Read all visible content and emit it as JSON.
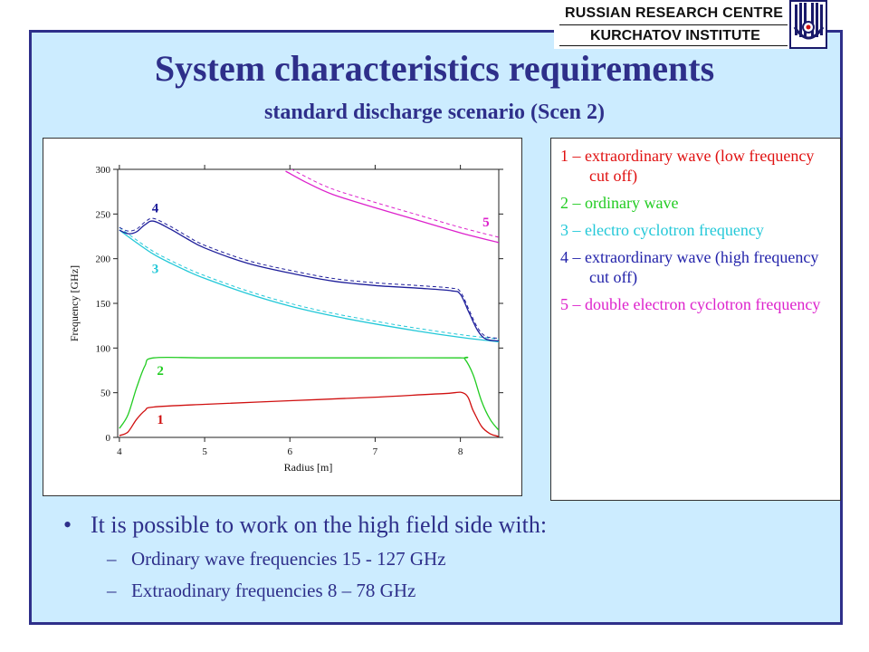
{
  "header": {
    "logo_line1": "RUSSIAN RESEARCH CENTRE",
    "logo_line2": "KURCHATOV INSTITUTE",
    "title": "System characteristics requirements",
    "subtitle": "standard discharge scenario (Scen 2)"
  },
  "colors": {
    "title": "#2e2f8a",
    "background": "#ccecff",
    "series1": "#d01010",
    "series2": "#22cc22",
    "series3": "#22c8d8",
    "series4": "#1e1e9a",
    "series5": "#dd22cc"
  },
  "legend": [
    {
      "text": "1 – extraordinary wave (low frequency cut off)",
      "color": "#e01010"
    },
    {
      "text": "2 – ordinary wave",
      "color": "#22cc22"
    },
    {
      "text": "3 – electro cyclotron frequency",
      "color": "#22c8d8"
    },
    {
      "text": "4 – extraordinary wave (high frequency cut off)",
      "color": "#2222aa"
    },
    {
      "text": "5 – double electron cyclotron frequency",
      "color": "#dd22cc"
    }
  ],
  "bullets": {
    "main": "It is possible to work on the high field side with:",
    "sub1": "Ordinary wave  frequencies  15 - 127 GHz",
    "sub2": "Extraodinary   frequencies 8 – 78 GHz"
  },
  "chart_data": {
    "type": "line",
    "xlabel": "Radius [m]",
    "ylabel": "Frequency [GHz]",
    "xlim": [
      3.98,
      8.45
    ],
    "ylim": [
      0,
      300
    ],
    "xticks": [
      4,
      5,
      6,
      7,
      8
    ],
    "yticks": [
      0,
      50,
      100,
      150,
      200,
      250,
      300
    ],
    "series": [
      {
        "name": "1",
        "color": "#d01010",
        "x": [
          4.0,
          4.1,
          4.2,
          4.3,
          4.4,
          5.0,
          6.0,
          7.0,
          7.8,
          8.05,
          8.15,
          8.25,
          8.35,
          8.45
        ],
        "y": [
          2,
          6,
          20,
          30,
          34,
          37,
          41,
          45,
          49,
          49,
          30,
          12,
          4,
          1
        ]
      },
      {
        "name": "2",
        "color": "#22cc22",
        "x": [
          4.0,
          4.1,
          4.2,
          4.3,
          4.4,
          5.0,
          6.0,
          7.0,
          8.0,
          8.05,
          8.15,
          8.25,
          8.35,
          8.45
        ],
        "y": [
          10,
          25,
          55,
          80,
          89,
          89,
          89,
          89,
          89,
          88,
          70,
          40,
          20,
          8
        ]
      },
      {
        "name": "3",
        "color": "#22c8d8",
        "x": [
          4.0,
          4.2,
          4.4,
          4.6,
          4.8,
          5.0,
          5.5,
          6.0,
          6.5,
          7.0,
          7.5,
          8.0,
          8.45
        ],
        "y": [
          232,
          218,
          205,
          195,
          186,
          178,
          161,
          147,
          136,
          127,
          119,
          112,
          107
        ]
      },
      {
        "name": "4",
        "color": "#1e1e9a",
        "x": [
          4.0,
          4.1,
          4.2,
          4.3,
          4.4,
          4.6,
          4.8,
          5.0,
          5.5,
          6.0,
          6.5,
          7.0,
          7.5,
          7.9,
          8.0,
          8.1,
          8.2,
          8.3,
          8.45
        ],
        "y": [
          232,
          228,
          230,
          238,
          242,
          233,
          222,
          212,
          195,
          184,
          175,
          170,
          167,
          164,
          160,
          140,
          120,
          110,
          108
        ]
      },
      {
        "name": "5",
        "color": "#dd22cc",
        "x": [
          5.95,
          6.2,
          6.5,
          7.0,
          7.5,
          8.0,
          8.45
        ],
        "y": [
          298,
          285,
          272,
          257,
          243,
          229,
          218
        ]
      }
    ],
    "annotations": [
      {
        "label": "1",
        "x": 4.48,
        "y": 15,
        "color": "#d01010"
      },
      {
        "label": "2",
        "x": 4.48,
        "y": 70,
        "color": "#22cc22"
      },
      {
        "label": "3",
        "x": 4.42,
        "y": 184,
        "color": "#22c8d8"
      },
      {
        "label": "4",
        "x": 4.42,
        "y": 252,
        "color": "#1e1e9a"
      },
      {
        "label": "5",
        "x": 8.3,
        "y": 236,
        "color": "#dd22cc"
      }
    ],
    "grid": false
  }
}
